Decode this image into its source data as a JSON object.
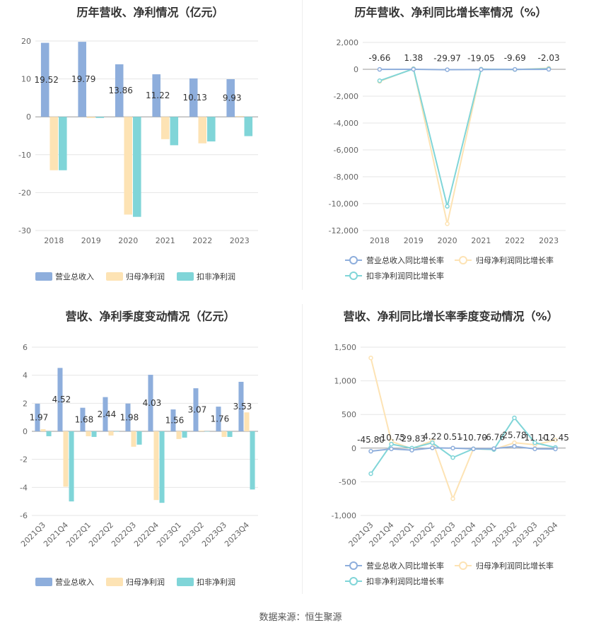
{
  "source": "数据来源：恒生聚源",
  "legend_colors": {
    "revenue": "#8eaedc",
    "net": "#fde3b4",
    "deducted": "#80d5d8"
  },
  "chart_data": [
    {
      "id": "annual_amounts",
      "type": "bar",
      "title": "历年营收、净利情况（亿元）",
      "categories": [
        "2018",
        "2019",
        "2020",
        "2021",
        "2022",
        "2023"
      ],
      "ylim": [
        -30,
        20
      ],
      "yticks": [
        20,
        10,
        0,
        -10,
        -20,
        -30
      ],
      "series": [
        {
          "name": "营业总收入",
          "color": "#8eaedc",
          "values": [
            19.52,
            19.79,
            13.86,
            11.22,
            10.13,
            9.93
          ],
          "labels": [
            "19.52",
            "19.79",
            "13.86",
            "11.22",
            "10.13",
            "9.93"
          ]
        },
        {
          "name": "归母净利润",
          "color": "#fde3b4",
          "values": [
            -14.1,
            -0.3,
            -25.8,
            -5.9,
            -7.0,
            0.2
          ]
        },
        {
          "name": "扣非净利润",
          "color": "#80d5d8",
          "values": [
            -14.1,
            -0.3,
            -26.4,
            -7.5,
            -6.5,
            -5.1
          ]
        }
      ],
      "grid": true,
      "legend": "bottom"
    },
    {
      "id": "annual_growth",
      "type": "line",
      "title": "历年营收、净利同比增长率情况（%）",
      "categories": [
        "2018",
        "2019",
        "2020",
        "2021",
        "2022",
        "2023"
      ],
      "ylim": [
        -12000,
        2000
      ],
      "yticks": [
        2000,
        0,
        -2000,
        -4000,
        -6000,
        -8000,
        -10000,
        -12000
      ],
      "ytick_labels": [
        "2,000",
        "0",
        "-2,000",
        "-4,000",
        "-6,000",
        "-8,000",
        "-10,000",
        "-12,000"
      ],
      "series": [
        {
          "name": "营业总收入同比增长率",
          "color": "#8eaedc",
          "values": [
            -9.66,
            1.38,
            -29.97,
            -19.05,
            -9.69,
            -2.03
          ],
          "labels": [
            "-9.66",
            "1.38",
            "-29.97",
            "-19.05",
            "-9.69",
            "-2.03"
          ]
        },
        {
          "name": "归母净利润同比增长率",
          "color": "#fde3b4",
          "values": [
            -900,
            50,
            -11500,
            10,
            -20,
            80
          ]
        },
        {
          "name": "扣非净利润同比增长率",
          "color": "#80d5d8",
          "values": [
            -850,
            30,
            -10200,
            5,
            -15,
            40
          ]
        }
      ],
      "grid": true,
      "legend": "bottom"
    },
    {
      "id": "quarterly_amounts",
      "type": "bar",
      "title": "营收、净利季度变动情况（亿元）",
      "categories": [
        "2021Q3",
        "2021Q4",
        "2022Q1",
        "2022Q2",
        "2022Q3",
        "2022Q4",
        "2023Q1",
        "2023Q2",
        "2023Q3",
        "2023Q4"
      ],
      "ylim": [
        -6,
        6
      ],
      "yticks": [
        6,
        4,
        2,
        0,
        -2,
        -4,
        -6
      ],
      "series": [
        {
          "name": "营业总收入",
          "color": "#8eaedc",
          "values": [
            1.97,
            4.52,
            1.68,
            2.44,
            1.98,
            4.03,
            1.56,
            3.07,
            1.76,
            3.53
          ],
          "labels": [
            "1.97",
            "4.52",
            "1.68",
            "2.44",
            "1.98",
            "4.03",
            "1.56",
            "3.07",
            "1.76",
            "3.53"
          ]
        },
        {
          "name": "归母净利润",
          "color": "#fde3b4",
          "values": [
            0.15,
            -3.95,
            -0.35,
            -0.3,
            -1.1,
            -4.9,
            -0.55,
            0.05,
            -0.4,
            1.35
          ]
        },
        {
          "name": "扣非净利润",
          "color": "#80d5d8",
          "values": [
            -0.35,
            -5.0,
            -0.4,
            0.0,
            -0.95,
            -5.1,
            -0.45,
            0.0,
            -0.4,
            -4.15
          ]
        }
      ],
      "grid": true,
      "legend": "bottom"
    },
    {
      "id": "quarterly_growth",
      "type": "line",
      "title": "营收、净利同比增长率季度变动情况（%）",
      "categories": [
        "2021Q3",
        "2021Q4",
        "2022Q1",
        "2022Q2",
        "2022Q3",
        "2022Q4",
        "2023Q1",
        "2023Q2",
        "2023Q3",
        "2023Q4"
      ],
      "ylim": [
        -1000,
        1500
      ],
      "yticks": [
        1500,
        1000,
        500,
        0,
        -500,
        -1000
      ],
      "ytick_labels": [
        "1,500",
        "1,000",
        "500",
        "0",
        "-500",
        "-1,000"
      ],
      "series": [
        {
          "name": "营业总收入同比增长率",
          "color": "#8eaedc",
          "values": [
            -45.8,
            -10.75,
            -29.83,
            4.22,
            0.51,
            -10.7,
            -6.76,
            25.78,
            -11.1,
            -12.45
          ],
          "labels": [
            "-45.80",
            "-10.75",
            "-29.83",
            "4.22",
            "0.51",
            "-10.70",
            "-6.76",
            "25.78",
            "-11.10",
            "-12.45"
          ]
        },
        {
          "name": "归母净利润同比增长率",
          "color": "#fde3b4",
          "values": [
            1340,
            100,
            -10,
            110,
            -750,
            -10,
            -20,
            80,
            50,
            120
          ]
        },
        {
          "name": "扣非净利润同比增长率",
          "color": "#80d5d8",
          "values": [
            -380,
            60,
            0,
            80,
            -140,
            -10,
            -20,
            450,
            80,
            10
          ]
        }
      ],
      "grid": true,
      "legend": "bottom"
    }
  ]
}
